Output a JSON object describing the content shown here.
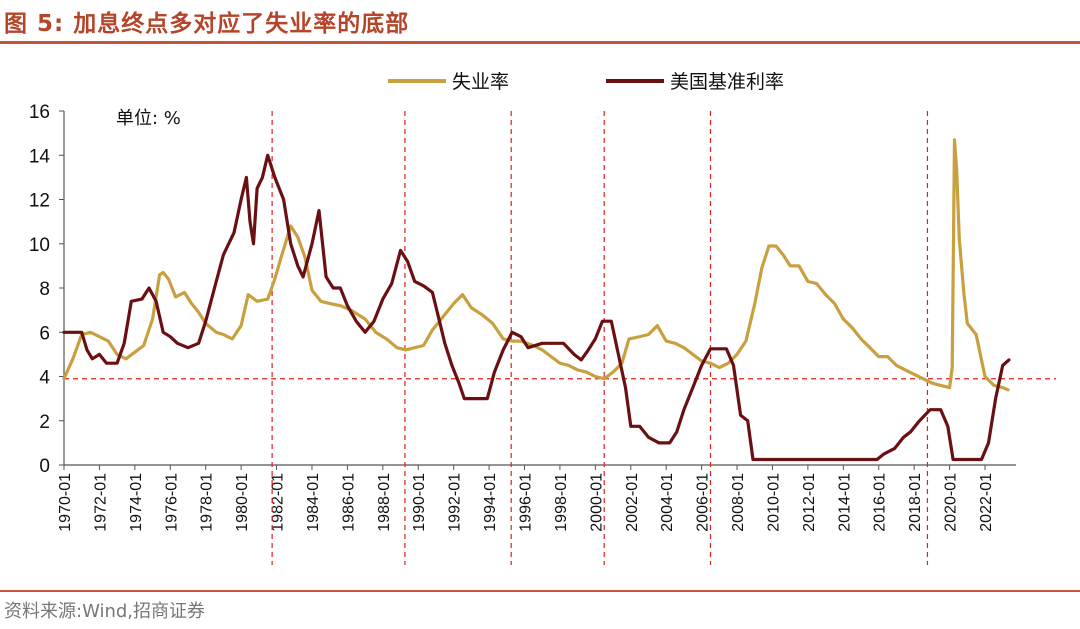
{
  "header": {
    "title": "图 5:  加息终点多对应了失业率的底部"
  },
  "footer": {
    "source": "资料来源:Wind,招商证券"
  },
  "chart_data": {
    "type": "line",
    "title": "图 5:  加息终点多对应了失业率的底部",
    "unit_label": "单位: %",
    "ylim": [
      0,
      16
    ],
    "y_ticks": [
      0,
      2,
      4,
      6,
      8,
      10,
      12,
      14,
      16
    ],
    "x_ticks": [
      "1970-01",
      "1972-01",
      "1974-01",
      "1976-01",
      "1978-01",
      "1980-01",
      "1982-01",
      "1984-01",
      "1986-01",
      "1988-01",
      "1990-01",
      "1992-01",
      "1994-01",
      "1996-01",
      "1998-01",
      "2000-01",
      "2002-01",
      "2004-01",
      "2006-01",
      "2008-01",
      "2010-01",
      "2012-01",
      "2014-01",
      "2016-01",
      "2018-01",
      "2020-01",
      "2022-01"
    ],
    "xlim": [
      1970.0,
      2023.75
    ],
    "legend_position": "top-center",
    "grid": false,
    "reference_lines": {
      "horizontal_y": 3.9,
      "vertical_x": [
        1981.75,
        1989.25,
        1995.25,
        2000.5,
        2006.5,
        2018.75
      ],
      "color": "#e0201b"
    },
    "series": [
      {
        "name": "失业率",
        "color": "#c9a03f",
        "points": [
          [
            1970.0,
            3.9
          ],
          [
            1970.5,
            4.8
          ],
          [
            1971.0,
            5.9
          ],
          [
            1971.5,
            6.0
          ],
          [
            1972.0,
            5.8
          ],
          [
            1972.5,
            5.6
          ],
          [
            1973.0,
            5.0
          ],
          [
            1973.5,
            4.8
          ],
          [
            1974.0,
            5.1
          ],
          [
            1974.5,
            5.4
          ],
          [
            1975.0,
            6.6
          ],
          [
            1975.4,
            8.6
          ],
          [
            1975.6,
            8.7
          ],
          [
            1975.9,
            8.4
          ],
          [
            1976.3,
            7.6
          ],
          [
            1976.8,
            7.8
          ],
          [
            1977.2,
            7.3
          ],
          [
            1977.6,
            6.9
          ],
          [
            1978.0,
            6.4
          ],
          [
            1978.6,
            6.0
          ],
          [
            1979.0,
            5.9
          ],
          [
            1979.5,
            5.7
          ],
          [
            1980.0,
            6.3
          ],
          [
            1980.4,
            7.7
          ],
          [
            1980.9,
            7.4
          ],
          [
            1981.5,
            7.5
          ],
          [
            1981.9,
            8.4
          ],
          [
            1982.3,
            9.5
          ],
          [
            1982.8,
            10.8
          ],
          [
            1983.2,
            10.3
          ],
          [
            1983.6,
            9.4
          ],
          [
            1984.0,
            7.9
          ],
          [
            1984.5,
            7.4
          ],
          [
            1985.0,
            7.3
          ],
          [
            1985.6,
            7.2
          ],
          [
            1986.2,
            7.0
          ],
          [
            1987.0,
            6.6
          ],
          [
            1987.6,
            6.0
          ],
          [
            1988.2,
            5.7
          ],
          [
            1988.8,
            5.3
          ],
          [
            1989.3,
            5.2
          ],
          [
            1989.8,
            5.3
          ],
          [
            1990.3,
            5.4
          ],
          [
            1990.8,
            6.1
          ],
          [
            1991.5,
            6.8
          ],
          [
            1992.0,
            7.3
          ],
          [
            1992.5,
            7.7
          ],
          [
            1993.0,
            7.1
          ],
          [
            1993.6,
            6.8
          ],
          [
            1994.2,
            6.4
          ],
          [
            1994.8,
            5.7
          ],
          [
            1995.3,
            5.6
          ],
          [
            1995.8,
            5.6
          ],
          [
            1996.5,
            5.4
          ],
          [
            1997.0,
            5.2
          ],
          [
            1997.5,
            4.9
          ],
          [
            1998.0,
            4.6
          ],
          [
            1998.5,
            4.5
          ],
          [
            1999.0,
            4.3
          ],
          [
            1999.5,
            4.2
          ],
          [
            2000.0,
            4.0
          ],
          [
            2000.5,
            3.9
          ],
          [
            2001.0,
            4.2
          ],
          [
            2001.5,
            4.6
          ],
          [
            2001.9,
            5.7
          ],
          [
            2002.5,
            5.8
          ],
          [
            2003.0,
            5.9
          ],
          [
            2003.5,
            6.3
          ],
          [
            2004.0,
            5.6
          ],
          [
            2004.5,
            5.5
          ],
          [
            2005.0,
            5.3
          ],
          [
            2005.5,
            5.0
          ],
          [
            2006.0,
            4.7
          ],
          [
            2006.5,
            4.6
          ],
          [
            2007.0,
            4.4
          ],
          [
            2007.5,
            4.6
          ],
          [
            2008.0,
            5.0
          ],
          [
            2008.5,
            5.6
          ],
          [
            2009.0,
            7.3
          ],
          [
            2009.4,
            8.9
          ],
          [
            2009.8,
            9.9
          ],
          [
            2010.2,
            9.9
          ],
          [
            2010.6,
            9.5
          ],
          [
            2011.0,
            9.0
          ],
          [
            2011.5,
            9.0
          ],
          [
            2012.0,
            8.3
          ],
          [
            2012.5,
            8.2
          ],
          [
            2013.0,
            7.7
          ],
          [
            2013.5,
            7.3
          ],
          [
            2014.0,
            6.6
          ],
          [
            2014.5,
            6.2
          ],
          [
            2015.0,
            5.7
          ],
          [
            2015.5,
            5.3
          ],
          [
            2016.0,
            4.9
          ],
          [
            2016.5,
            4.9
          ],
          [
            2017.0,
            4.5
          ],
          [
            2017.5,
            4.3
          ],
          [
            2018.0,
            4.1
          ],
          [
            2018.5,
            3.9
          ],
          [
            2019.0,
            3.7
          ],
          [
            2019.5,
            3.6
          ],
          [
            2020.0,
            3.5
          ],
          [
            2020.15,
            4.4
          ],
          [
            2020.28,
            14.7
          ],
          [
            2020.4,
            13.3
          ],
          [
            2020.55,
            10.2
          ],
          [
            2020.8,
            7.8
          ],
          [
            2021.0,
            6.4
          ],
          [
            2021.5,
            5.9
          ],
          [
            2022.0,
            4.0
          ],
          [
            2022.5,
            3.6
          ],
          [
            2023.0,
            3.5
          ],
          [
            2023.3,
            3.4
          ]
        ]
      },
      {
        "name": "美国基准利率",
        "color": "#6a0f12",
        "points": [
          [
            1970.0,
            6.0
          ],
          [
            1970.6,
            6.0
          ],
          [
            1971.0,
            6.0
          ],
          [
            1971.3,
            5.2
          ],
          [
            1971.6,
            4.8
          ],
          [
            1972.0,
            5.0
          ],
          [
            1972.4,
            4.6
          ],
          [
            1973.0,
            4.6
          ],
          [
            1973.4,
            5.5
          ],
          [
            1973.8,
            7.4
          ],
          [
            1974.4,
            7.5
          ],
          [
            1974.8,
            8.0
          ],
          [
            1975.2,
            7.4
          ],
          [
            1975.6,
            6.0
          ],
          [
            1976.0,
            5.8
          ],
          [
            1976.4,
            5.5
          ],
          [
            1977.0,
            5.3
          ],
          [
            1977.6,
            5.5
          ],
          [
            1978.0,
            6.5
          ],
          [
            1978.5,
            8.0
          ],
          [
            1979.0,
            9.5
          ],
          [
            1979.6,
            10.5
          ],
          [
            1980.0,
            12.0
          ],
          [
            1980.3,
            13.0
          ],
          [
            1980.5,
            11.0
          ],
          [
            1980.7,
            10.0
          ],
          [
            1980.9,
            12.5
          ],
          [
            1981.2,
            13.0
          ],
          [
            1981.5,
            14.0
          ],
          [
            1981.9,
            13.0
          ],
          [
            1982.4,
            12.0
          ],
          [
            1982.8,
            10.0
          ],
          [
            1983.2,
            9.0
          ],
          [
            1983.5,
            8.5
          ],
          [
            1984.0,
            10.0
          ],
          [
            1984.4,
            11.5
          ],
          [
            1984.8,
            8.5
          ],
          [
            1985.2,
            8.0
          ],
          [
            1985.6,
            8.0
          ],
          [
            1986.0,
            7.2
          ],
          [
            1986.5,
            6.5
          ],
          [
            1987.0,
            6.0
          ],
          [
            1987.5,
            6.5
          ],
          [
            1988.0,
            7.5
          ],
          [
            1988.5,
            8.2
          ],
          [
            1989.0,
            9.7
          ],
          [
            1989.4,
            9.2
          ],
          [
            1989.8,
            8.3
          ],
          [
            1990.3,
            8.1
          ],
          [
            1990.8,
            7.8
          ],
          [
            1991.2,
            6.5
          ],
          [
            1991.5,
            5.5
          ],
          [
            1991.9,
            4.5
          ],
          [
            1992.3,
            3.7
          ],
          [
            1992.6,
            3.0
          ],
          [
            1993.2,
            3.0
          ],
          [
            1993.9,
            3.0
          ],
          [
            1994.3,
            4.2
          ],
          [
            1994.8,
            5.2
          ],
          [
            1995.3,
            6.0
          ],
          [
            1995.8,
            5.8
          ],
          [
            1996.2,
            5.3
          ],
          [
            1997.0,
            5.5
          ],
          [
            1997.6,
            5.5
          ],
          [
            1998.2,
            5.5
          ],
          [
            1998.8,
            5.0
          ],
          [
            1999.2,
            4.75
          ],
          [
            1999.6,
            5.2
          ],
          [
            2000.0,
            5.7
          ],
          [
            2000.4,
            6.5
          ],
          [
            2000.9,
            6.5
          ],
          [
            2001.3,
            5.0
          ],
          [
            2001.7,
            3.5
          ],
          [
            2002.0,
            1.75
          ],
          [
            2002.5,
            1.75
          ],
          [
            2003.0,
            1.25
          ],
          [
            2003.6,
            1.0
          ],
          [
            2004.2,
            1.0
          ],
          [
            2004.6,
            1.5
          ],
          [
            2005.0,
            2.5
          ],
          [
            2005.5,
            3.5
          ],
          [
            2006.0,
            4.5
          ],
          [
            2006.5,
            5.25
          ],
          [
            2007.4,
            5.25
          ],
          [
            2007.8,
            4.5
          ],
          [
            2008.2,
            2.25
          ],
          [
            2008.6,
            2.0
          ],
          [
            2008.9,
            0.25
          ],
          [
            2015.9,
            0.25
          ],
          [
            2016.3,
            0.5
          ],
          [
            2016.9,
            0.75
          ],
          [
            2017.4,
            1.25
          ],
          [
            2017.8,
            1.5
          ],
          [
            2018.3,
            2.0
          ],
          [
            2018.9,
            2.5
          ],
          [
            2019.5,
            2.5
          ],
          [
            2019.9,
            1.75
          ],
          [
            2020.2,
            0.25
          ],
          [
            2021.8,
            0.25
          ],
          [
            2022.2,
            1.0
          ],
          [
            2022.6,
            3.0
          ],
          [
            2023.0,
            4.5
          ],
          [
            2023.35,
            4.75
          ]
        ]
      }
    ]
  }
}
